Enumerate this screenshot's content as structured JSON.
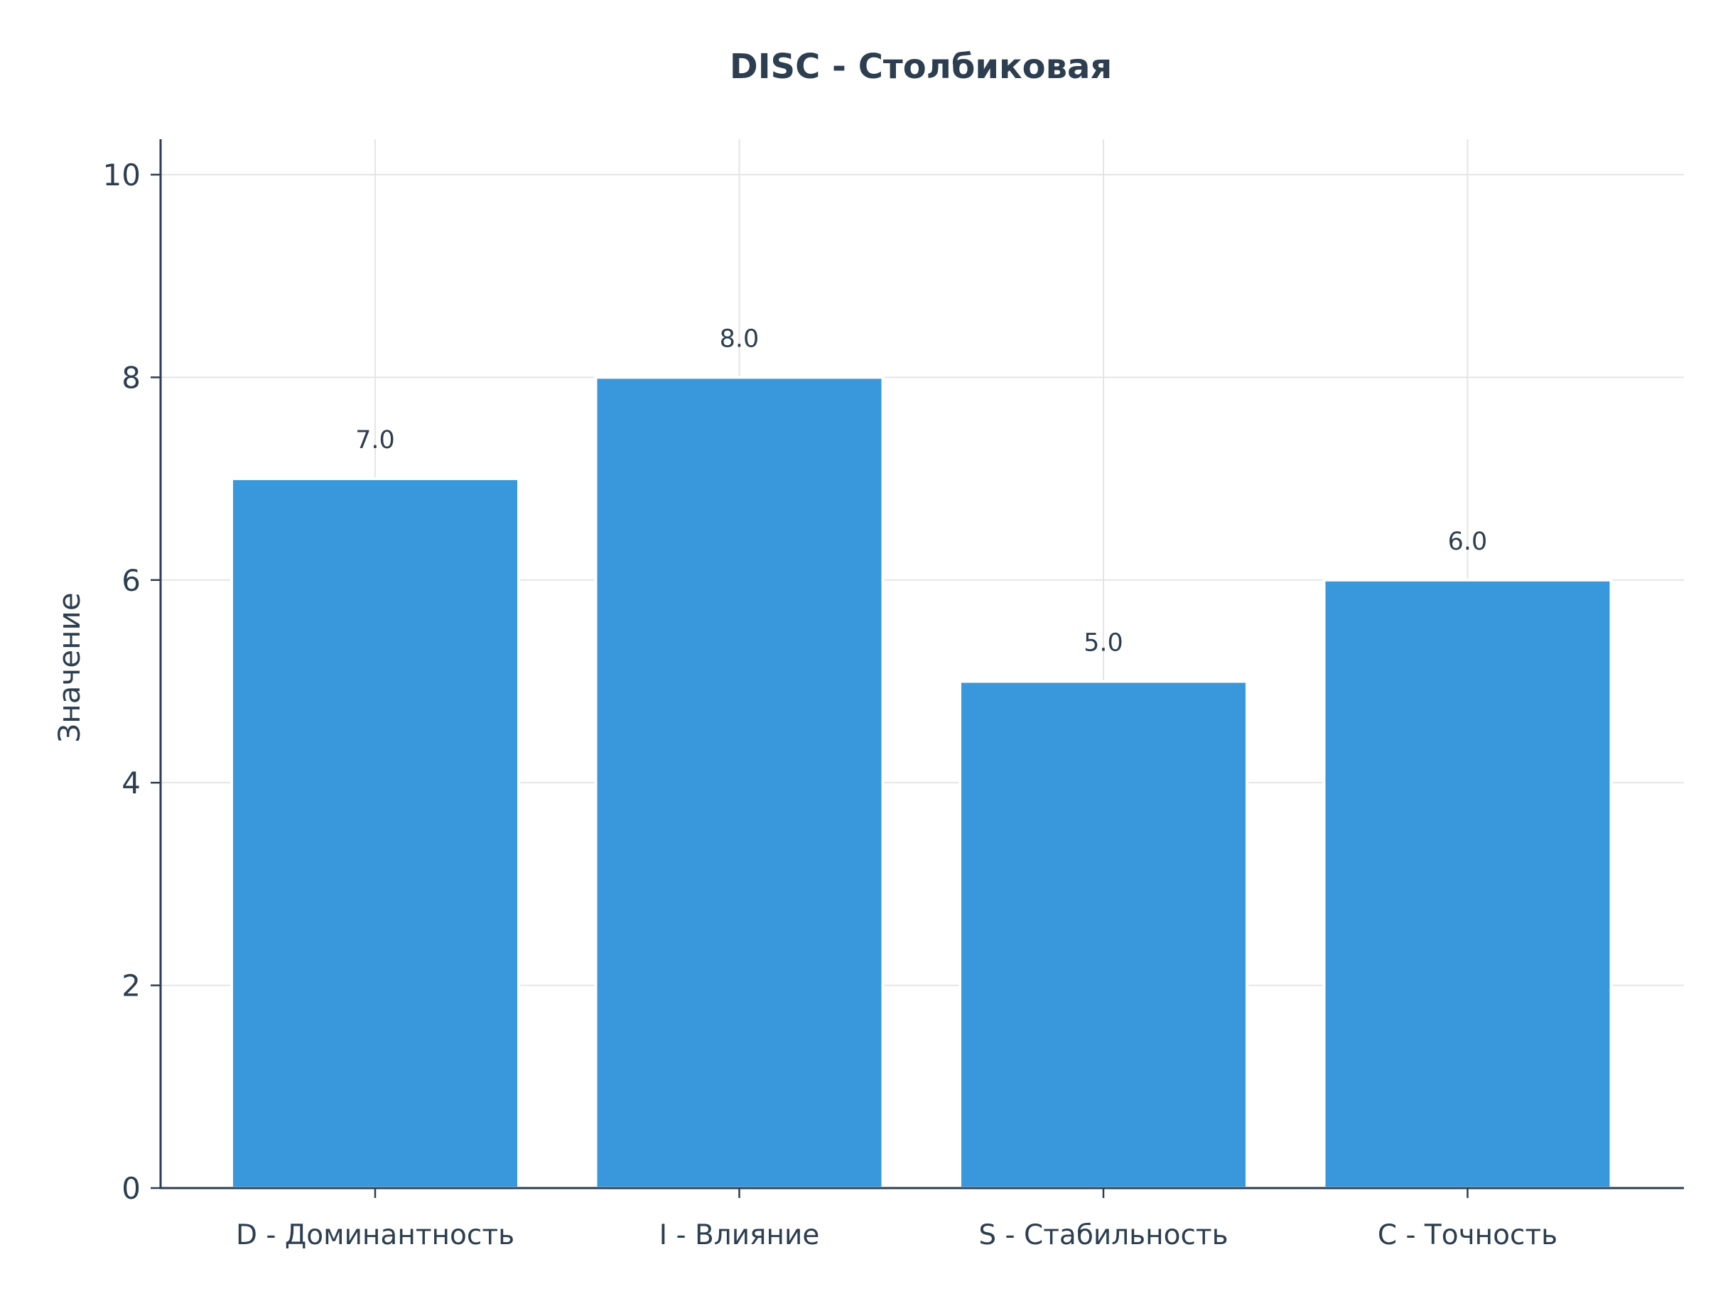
{
  "chart_data": {
    "type": "bar",
    "title": "DISC - Столбиковая",
    "xlabel": "",
    "ylabel": "Значение",
    "categories": [
      "D - Доминантность",
      "I - Влияние",
      "S - Стабильность",
      "C - Точность"
    ],
    "values": [
      7.0,
      8.0,
      5.0,
      6.0
    ],
    "data_labels": [
      "7.0",
      "8.0",
      "5.0",
      "6.0"
    ],
    "ylim": [
      0,
      10.35
    ],
    "yticks": [
      0,
      2,
      4,
      6,
      8,
      10
    ],
    "ytick_labels": [
      "0",
      "2",
      "4",
      "6",
      "8",
      "10"
    ],
    "grid": true,
    "legend": "none",
    "bar_color": "#3898db",
    "text_color": "#2c3e50",
    "grid_color": "#e5e5e5"
  }
}
